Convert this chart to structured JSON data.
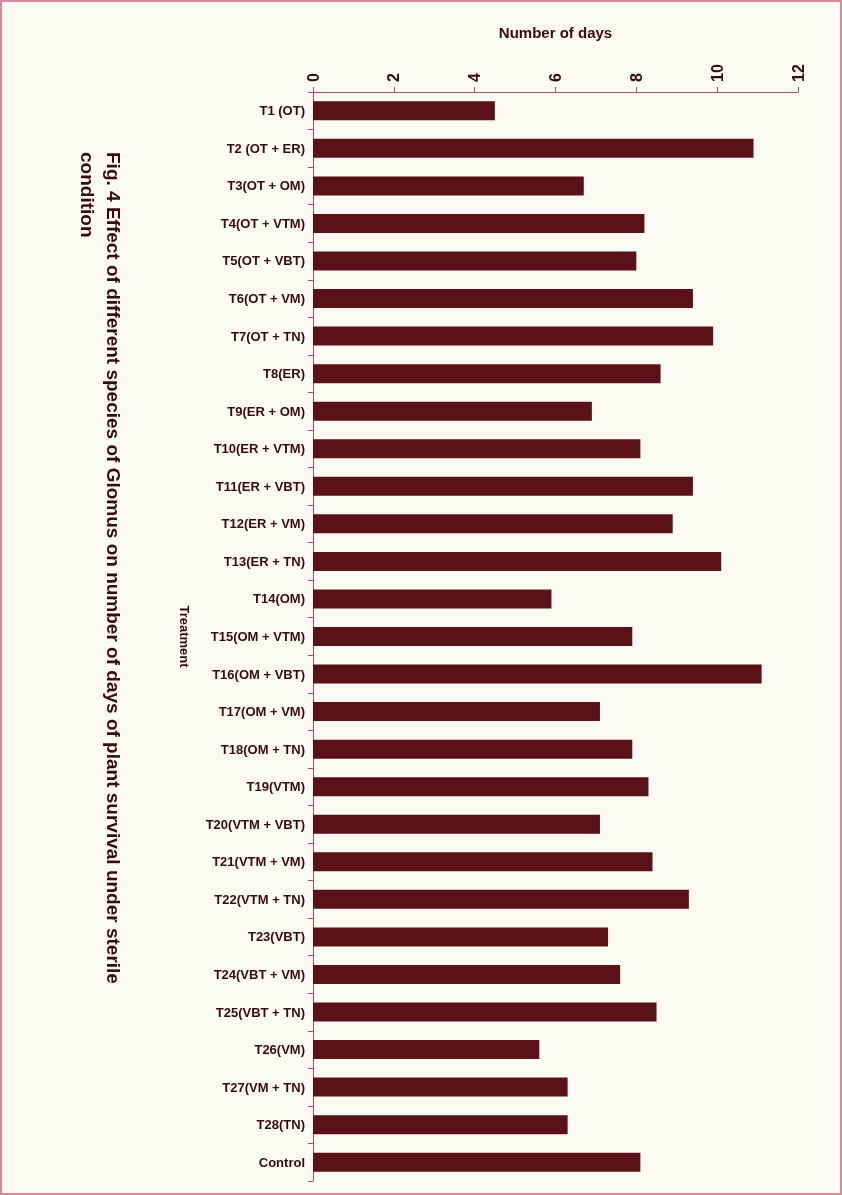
{
  "chart_data": {
    "type": "bar",
    "orientation": "horizontal",
    "title": "Fig. 4 Effect of different species of Glomus on number of days of plant survival under sterile condition",
    "xlabel": "Number of days",
    "ylabel": "Treatment",
    "categories": [
      "T1 (OT)",
      "T2 (OT + ER)",
      "T3(OT + OM)",
      "T4(OT + VTM)",
      "T5(OT + VBT)",
      "T6(OT + VM)",
      "T7(OT + TN)",
      "T8(ER)",
      "T9(ER + OM)",
      "T10(ER + VTM)",
      "T11(ER + VBT)",
      "T12(ER + VM)",
      "T13(ER + TN)",
      "T14(OM)",
      "T15(OM + VTM)",
      "T16(OM + VBT)",
      "T17(OM + VM)",
      "T18(OM + TN)",
      "T19(VTM)",
      "T20(VTM + VBT)",
      "T21(VTM + VM)",
      "T22(VTM + TN)",
      "T23(VBT)",
      "T24(VBT + VM)",
      "T25(VBT + TN)",
      "T26(VM)",
      "T27(VM + TN)",
      "T28(TN)",
      "Control"
    ],
    "values": [
      4.5,
      10.9,
      6.7,
      8.2,
      8.0,
      9.4,
      9.9,
      8.6,
      6.9,
      8.1,
      9.4,
      8.9,
      10.1,
      5.9,
      7.9,
      11.1,
      7.1,
      7.9,
      8.3,
      7.1,
      8.4,
      9.3,
      7.3,
      7.6,
      8.5,
      5.6,
      6.3,
      6.3,
      8.1
    ],
    "color": "#5a1218",
    "xlim": [
      0,
      12
    ],
    "xticks": [
      0,
      2,
      4,
      6,
      8,
      10,
      12
    ],
    "grid": false
  }
}
